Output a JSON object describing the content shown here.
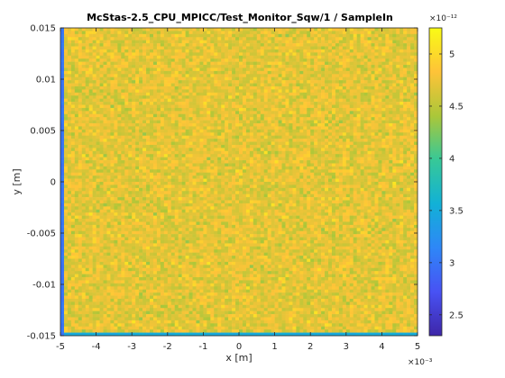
{
  "chart_data": {
    "type": "heatmap",
    "title": "McStas-2.5_CPU_MPICC/Test_Monitor_Sqw/1 / SampleIn",
    "xlabel": "x [m]",
    "ylabel": "y [m]",
    "xlim": [
      -5,
      5
    ],
    "x_multiplier": "×10⁻³",
    "x_ticks": [
      -5,
      -4,
      -3,
      -2,
      -1,
      0,
      1,
      2,
      3,
      4,
      5
    ],
    "x_tick_labels": [
      "-5",
      "-4",
      "-3",
      "-2",
      "-1",
      "0",
      "1",
      "2",
      "3",
      "4",
      "5"
    ],
    "ylim": [
      -0.015,
      0.015
    ],
    "y_ticks": [
      -0.015,
      -0.01,
      -0.005,
      0,
      0.005,
      0.01,
      0.015
    ],
    "y_tick_labels": [
      "-0.015",
      "-0.01",
      "-0.005",
      "0",
      "0.005",
      "0.01",
      "0.015"
    ],
    "colorbar": {
      "range": [
        2.3,
        5.25
      ],
      "ticks": [
        2.5,
        3,
        3.5,
        4,
        4.5,
        5
      ],
      "tick_labels": [
        "2.5",
        "3",
        "3.5",
        "4",
        "4.5",
        "5"
      ],
      "multiplier": "×10⁻¹²",
      "colormap": "parula"
    },
    "grid": {
      "columns": 100,
      "rows": 100,
      "typical_value": 4.75,
      "value_spread": [
        4.3,
        5.1
      ],
      "edge_values": {
        "left_column": 3.0,
        "bottom_row": 3.5
      }
    }
  }
}
